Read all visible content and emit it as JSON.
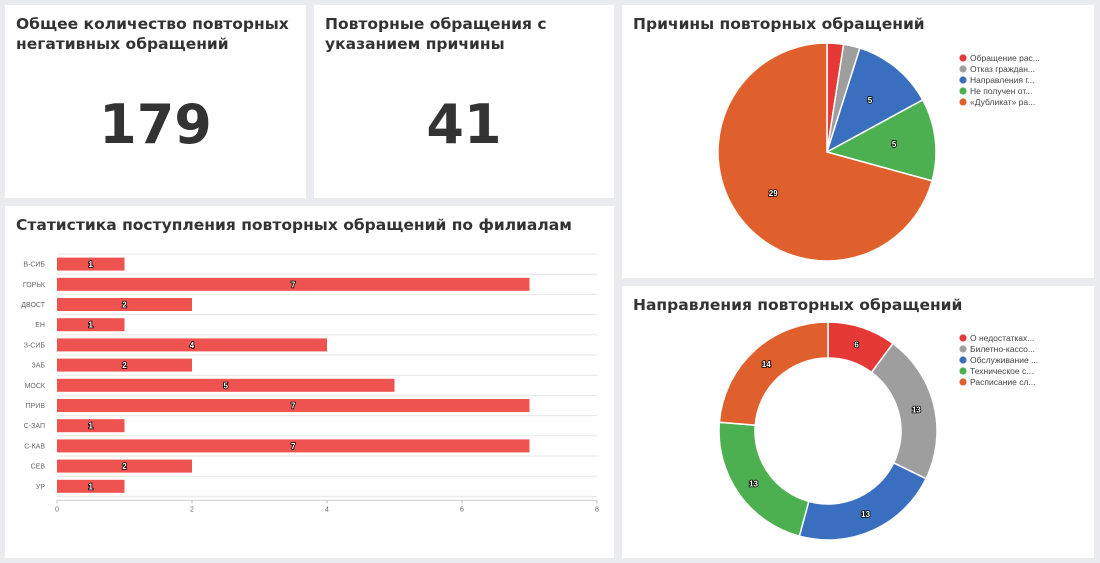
{
  "kpi_total": {
    "title": "Общее количество повторных негативных обращений",
    "value": "179"
  },
  "kpi_reasons": {
    "title": "Повторные обращения с указанием причины",
    "value": "41"
  },
  "branches_card": {
    "title": "Статистика поступления повторных обращений по филиалам"
  },
  "reasons_card": {
    "title": "Причины повторных обращений"
  },
  "directions_card": {
    "title": "Направления повторных обращений"
  },
  "chart_data": [
    {
      "type": "bar",
      "orientation": "horizontal",
      "categories": [
        "В-СИБ",
        "ГОРЬК",
        "ДВОСТ",
        "ЕН",
        "З-СИБ",
        "ЗАБ",
        "МОСК",
        "ПРИВ",
        "С-ЗАП",
        "С-КАВ",
        "СЕВ",
        "УР"
      ],
      "values": [
        1,
        7,
        2,
        1,
        4,
        2,
        5,
        7,
        1,
        7,
        2,
        1
      ],
      "xlim": [
        0,
        8
      ],
      "xticks": [
        0,
        2,
        4,
        6,
        8
      ],
      "color": "#ef5350",
      "grid": true
    },
    {
      "type": "pie",
      "labels": [
        "Обращение рас...",
        "Отказ граждан...",
        "Направления г...",
        "Не получен от...",
        "«Дубликат» ра..."
      ],
      "values": [
        1,
        1,
        5,
        5,
        29
      ],
      "colors": [
        "#e53935",
        "#9e9e9e",
        "#3a6fbf",
        "#4caf50",
        "#e0602d"
      ],
      "legend": "right"
    },
    {
      "type": "donut",
      "labels": [
        "О недостатках...",
        "Билетно-кассо...",
        "Обслуживание ...",
        "Техническое с...",
        "Расписание сл..."
      ],
      "values": [
        6,
        13,
        13,
        13,
        14
      ],
      "colors": [
        "#e53935",
        "#9e9e9e",
        "#3a6fbf",
        "#4caf50",
        "#e0602d"
      ],
      "legend": "right"
    }
  ]
}
